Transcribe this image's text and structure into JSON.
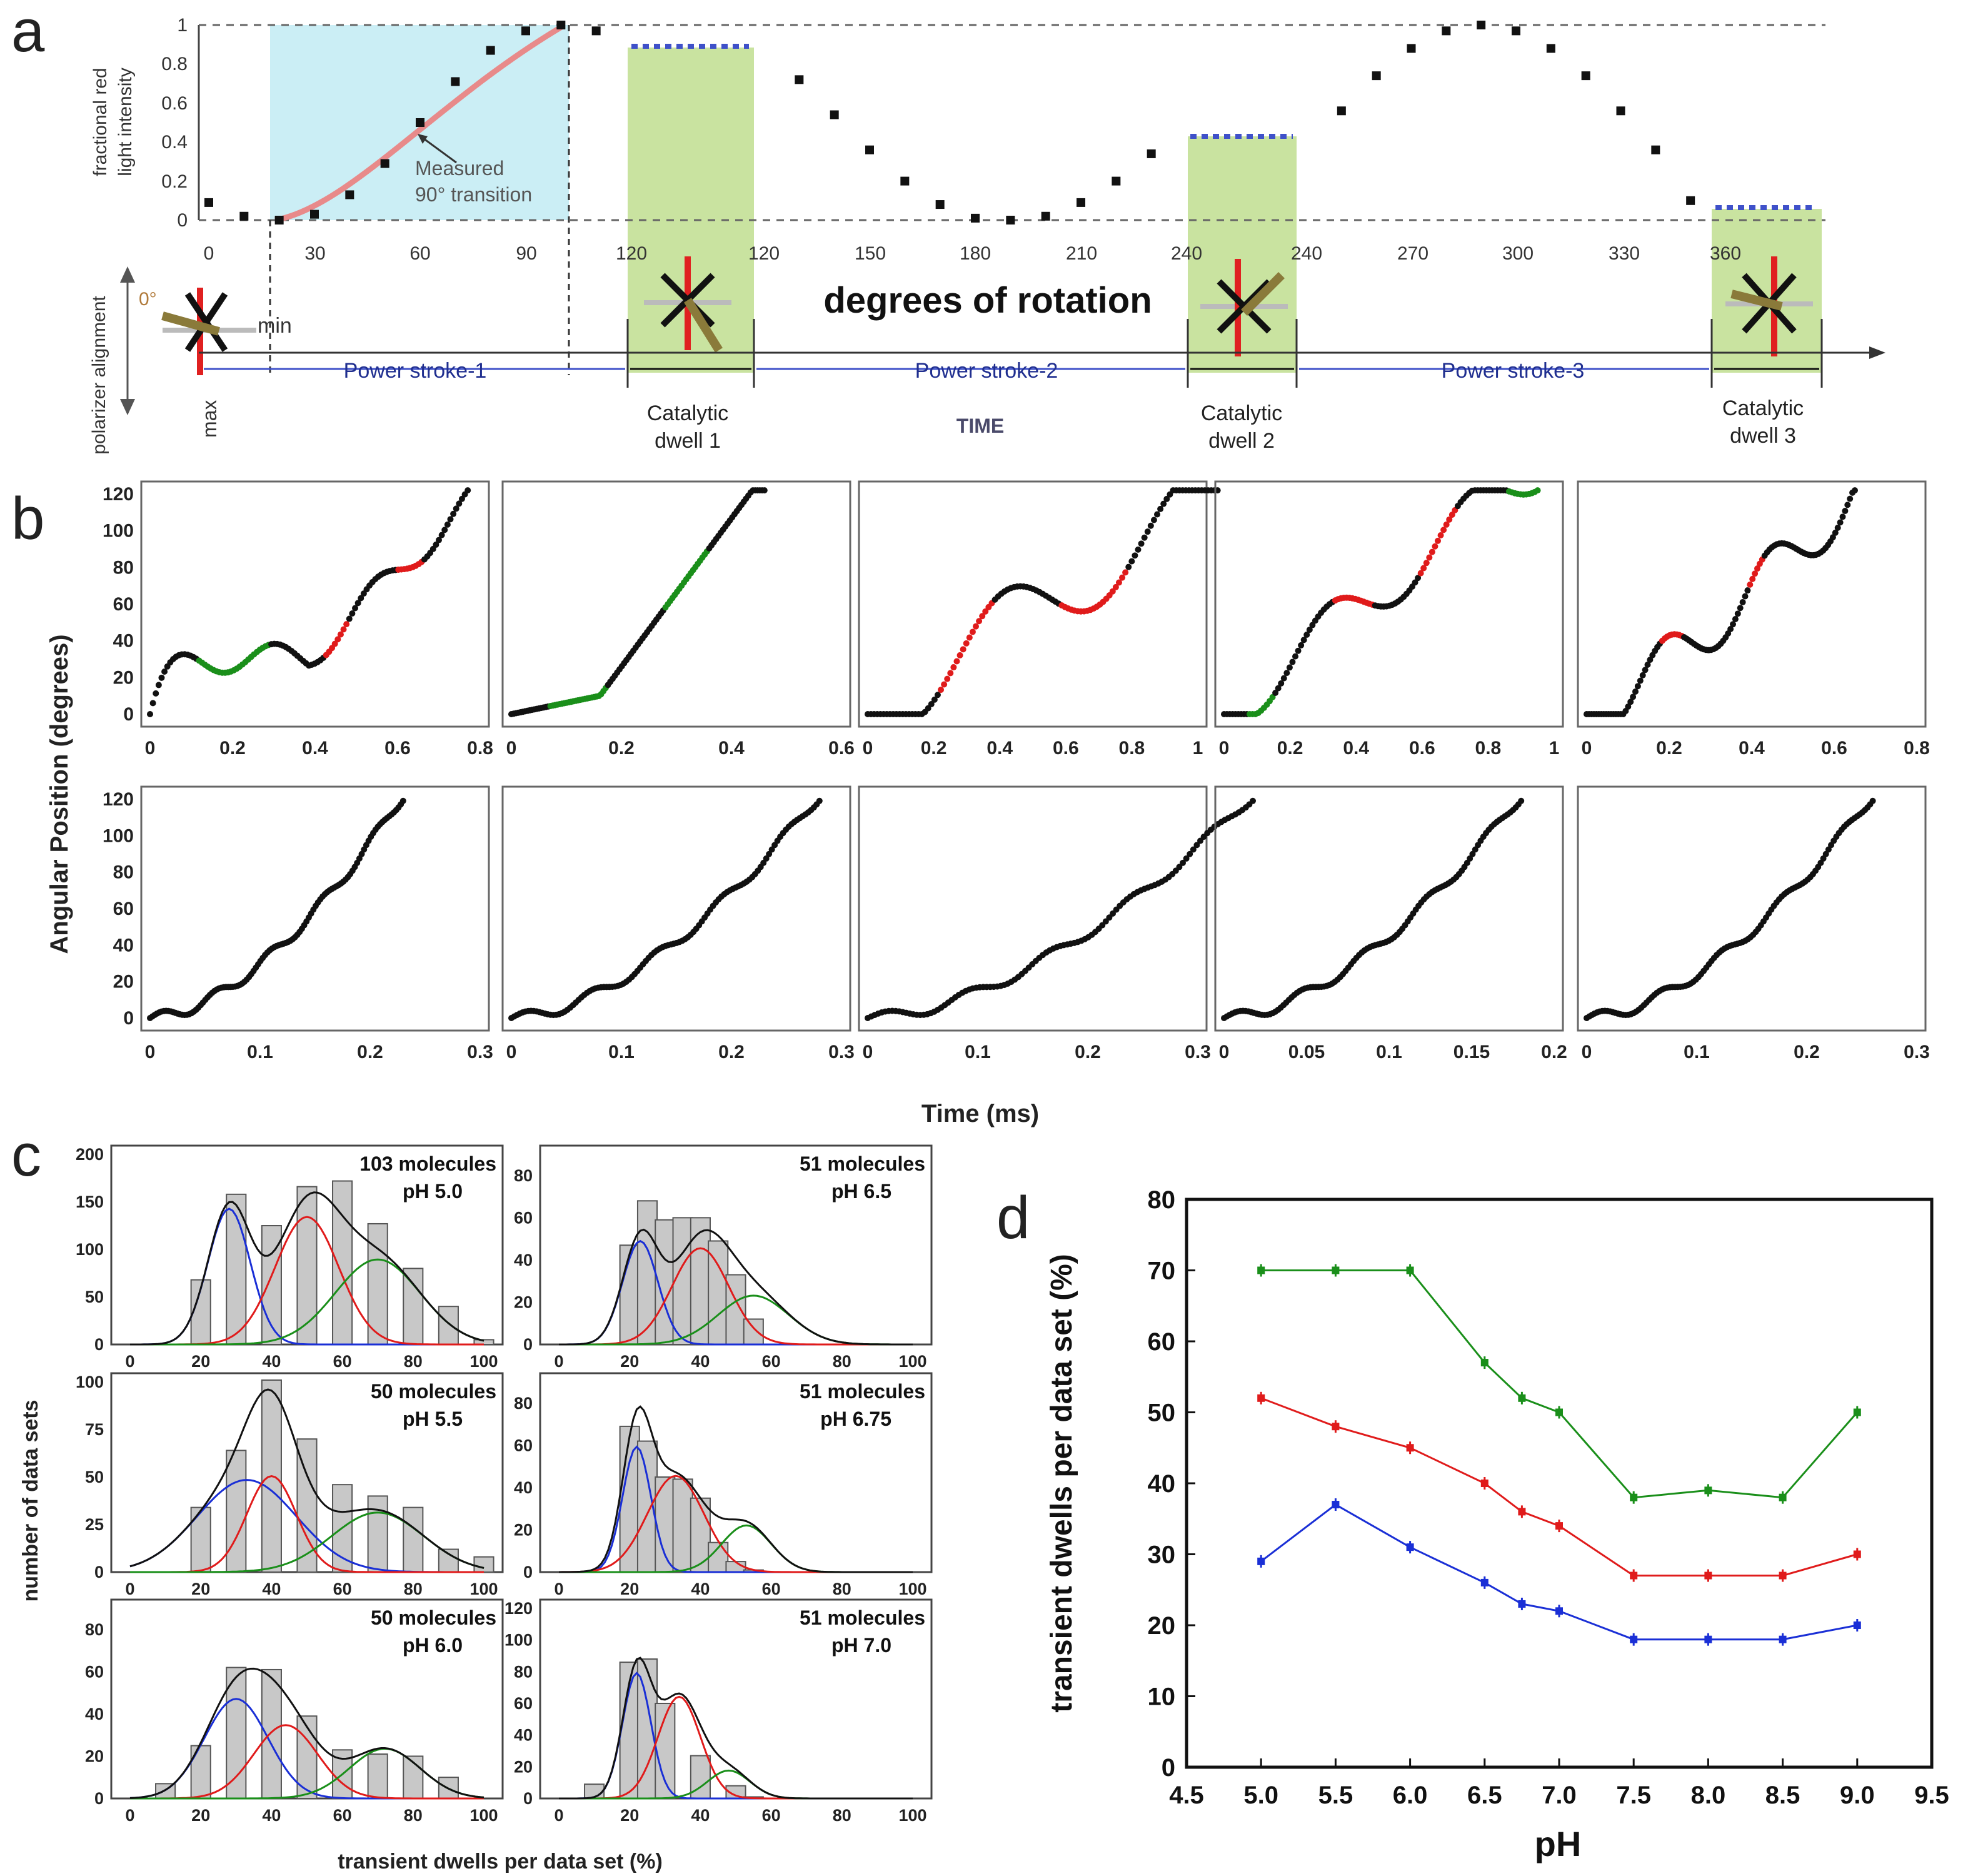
{
  "panels": {
    "a": {
      "label": "a",
      "ylabel_line1": "fractional red",
      "ylabel_line2": "light intensity",
      "y_ticks": [
        "1",
        "0.8",
        "0.6",
        "0.4",
        "0.2",
        "0"
      ],
      "x_ticks": [
        "0",
        "30",
        "60",
        "90",
        "120",
        "120",
        "150",
        "180",
        "210",
        "240",
        "240",
        "270",
        "300",
        "330",
        "360"
      ],
      "xlabel": "degrees of rotation",
      "annotation_line1": "Measured",
      "annotation_line2": "90° transition",
      "polarizer_label": "polarizer alignment",
      "zero_label": "0°",
      "min_label": "min",
      "max_label": "max",
      "time_label": "TIME",
      "power_strokes": [
        "Power stroke-1",
        "Power stroke-2",
        "Power stroke-3"
      ],
      "dwells": [
        {
          "line1": "Catalytic",
          "line2": "dwell 1"
        },
        {
          "line1": "Catalytic",
          "line2": "dwell 2"
        },
        {
          "line1": "Catalytic",
          "line2": "dwell 3"
        }
      ]
    },
    "b": {
      "label": "b",
      "ylabel": "Angular Position (degrees)",
      "xlabel": "Time (ms)",
      "y_ticks": [
        "0",
        "20",
        "40",
        "60",
        "80",
        "100",
        "120"
      ],
      "top_x_ticks": [
        [
          "0",
          "0.2",
          "0.4",
          "0.6",
          "0.8"
        ],
        [
          "0",
          "0.2",
          "0.4",
          "0.6"
        ],
        [
          "0",
          "0.2",
          "0.4",
          "0.6",
          "0.8",
          "1"
        ],
        [
          "0",
          "0.2",
          "0.4",
          "0.6",
          "0.8",
          "1"
        ],
        [
          "0",
          "0.2",
          "0.4",
          "0.6",
          "0.8"
        ]
      ],
      "bottom_x_ticks": [
        [
          "0",
          "0.1",
          "0.2",
          "0.3"
        ],
        [
          "0",
          "0.1",
          "0.2",
          "0.3"
        ],
        [
          "0",
          "0.1",
          "0.2",
          "0.3"
        ],
        [
          "0",
          "0.05",
          "0.1",
          "0.15",
          "0.2"
        ],
        [
          "0",
          "0.1",
          "0.2",
          "0.3"
        ]
      ]
    },
    "c": {
      "label": "c",
      "ylabel": "number of data sets",
      "xlabel": "transient dwells per data set (%)",
      "x_ticks": [
        "0",
        "20",
        "40",
        "60",
        "80",
        "100"
      ],
      "histograms": [
        {
          "molecules": "103 molecules",
          "ph": "pH 5.0",
          "y_ticks": [
            "0",
            "50",
            "100",
            "150",
            "200"
          ]
        },
        {
          "molecules": "51 molecules",
          "ph": "pH 6.5",
          "y_ticks": [
            "0",
            "20",
            "40",
            "60",
            "80"
          ]
        },
        {
          "molecules": "50 molecules",
          "ph": "pH 5.5",
          "y_ticks": [
            "0",
            "25",
            "50",
            "75",
            "100"
          ]
        },
        {
          "molecules": "51 molecules",
          "ph": "pH 6.75",
          "y_ticks": [
            "0",
            "20",
            "40",
            "60",
            "80"
          ]
        },
        {
          "molecules": "50 molecules",
          "ph": "pH 6.0",
          "y_ticks": [
            "0",
            "20",
            "40",
            "60",
            "80"
          ]
        },
        {
          "molecules": "51 molecules",
          "ph": "pH 7.0",
          "y_ticks": [
            "0",
            "20",
            "40",
            "60",
            "80",
            "100",
            "120"
          ]
        }
      ]
    },
    "d": {
      "label": "d",
      "ylabel": "transient dwells per data set (%)",
      "xlabel": "pH",
      "x_ticks": [
        "4.5",
        "5.0",
        "5.5",
        "6.0",
        "6.5",
        "7.0",
        "7.5",
        "8.0",
        "8.5",
        "9.0",
        "9.5"
      ],
      "y_ticks": [
        "0",
        "10",
        "20",
        "30",
        "40",
        "50",
        "60",
        "70",
        "80"
      ]
    }
  },
  "colors": {
    "blue": "#1a2fd6",
    "red": "#e01b1b",
    "green": "#1a8f1a",
    "dwell": "#c9e3a0",
    "lightblue": "#cbeef5",
    "dots": "#3f51c9"
  },
  "chart_data": [
    {
      "type": "scatter",
      "title": "a",
      "xlabel": "degrees of rotation",
      "ylabel": "fractional red light intensity",
      "ylim": [
        0,
        1
      ],
      "x": [
        0,
        10,
        20,
        30,
        40,
        50,
        60,
        70,
        80,
        90,
        100,
        110,
        130,
        140,
        150,
        160,
        170,
        180,
        190,
        200,
        210,
        220,
        230,
        250,
        260,
        270,
        280,
        290,
        300,
        310,
        320,
        330,
        340,
        350
      ],
      "y": [
        0.09,
        0.02,
        0.0,
        0.03,
        0.13,
        0.29,
        0.5,
        0.71,
        0.87,
        0.97,
        1.0,
        0.97,
        0.72,
        0.54,
        0.36,
        0.2,
        0.08,
        0.01,
        0.0,
        0.02,
        0.09,
        0.2,
        0.34,
        0.56,
        0.74,
        0.88,
        0.97,
        1.0,
        0.97,
        0.88,
        0.74,
        0.56,
        0.36,
        0.1
      ]
    },
    {
      "type": "line",
      "title": "d",
      "xlabel": "pH",
      "ylabel": "transient dwells per data set (%)",
      "xlim": [
        4.5,
        9.5
      ],
      "ylim": [
        0,
        80
      ],
      "x": [
        5.0,
        5.5,
        6.0,
        6.5,
        6.75,
        7.0,
        7.5,
        8.0,
        8.5,
        9.0
      ],
      "series": [
        {
          "name": "green",
          "values": [
            70,
            70,
            70,
            57,
            52,
            50,
            38,
            39,
            38,
            50
          ]
        },
        {
          "name": "red",
          "values": [
            52,
            48,
            45,
            40,
            36,
            34,
            27,
            27,
            27,
            30
          ]
        },
        {
          "name": "blue",
          "values": [
            29,
            37,
            31,
            26,
            23,
            22,
            18,
            18,
            18,
            20
          ]
        }
      ]
    },
    {
      "type": "bar",
      "title": "c pH 5.0",
      "categories": [
        "20",
        "30",
        "40",
        "50",
        "60",
        "70",
        "80",
        "90",
        "100"
      ],
      "values": [
        68,
        158,
        125,
        166,
        172,
        127,
        80,
        40,
        5
      ],
      "ylim": [
        0,
        200
      ]
    },
    {
      "type": "bar",
      "title": "c pH 6.5",
      "categories": [
        "20",
        "25",
        "30",
        "35",
        "40",
        "45",
        "50",
        "55",
        "60",
        "65"
      ],
      "values": [
        47,
        68,
        59,
        60,
        60,
        49,
        33,
        12,
        0,
        0
      ],
      "ylim": [
        0,
        90
      ]
    },
    {
      "type": "bar",
      "title": "c pH 5.5",
      "categories": [
        "20",
        "30",
        "40",
        "50",
        "60",
        "70",
        "80",
        "90",
        "100"
      ],
      "values": [
        34,
        64,
        101,
        70,
        46,
        40,
        34,
        12,
        8
      ],
      "ylim": [
        0,
        100
      ]
    },
    {
      "type": "bar",
      "title": "c pH 6.75",
      "categories": [
        "20",
        "25",
        "30",
        "35",
        "40",
        "45",
        "50",
        "55",
        "60",
        "65"
      ],
      "values": [
        69,
        62,
        45,
        44,
        35,
        14,
        5,
        1,
        0,
        0
      ],
      "ylim": [
        0,
        90
      ]
    },
    {
      "type": "bar",
      "title": "c pH 6.0",
      "categories": [
        "10",
        "20",
        "30",
        "40",
        "50",
        "60",
        "70",
        "80",
        "90"
      ],
      "values": [
        7,
        25,
        62,
        61,
        39,
        23,
        21,
        20,
        10
      ],
      "ylim": [
        0,
        90
      ]
    },
    {
      "type": "bar",
      "title": "c pH 7.0",
      "categories": [
        "10",
        "20",
        "25",
        "30",
        "40",
        "50",
        "55"
      ],
      "values": [
        9,
        86,
        88,
        60,
        27,
        8,
        1
      ],
      "ylim": [
        0,
        120
      ]
    }
  ]
}
